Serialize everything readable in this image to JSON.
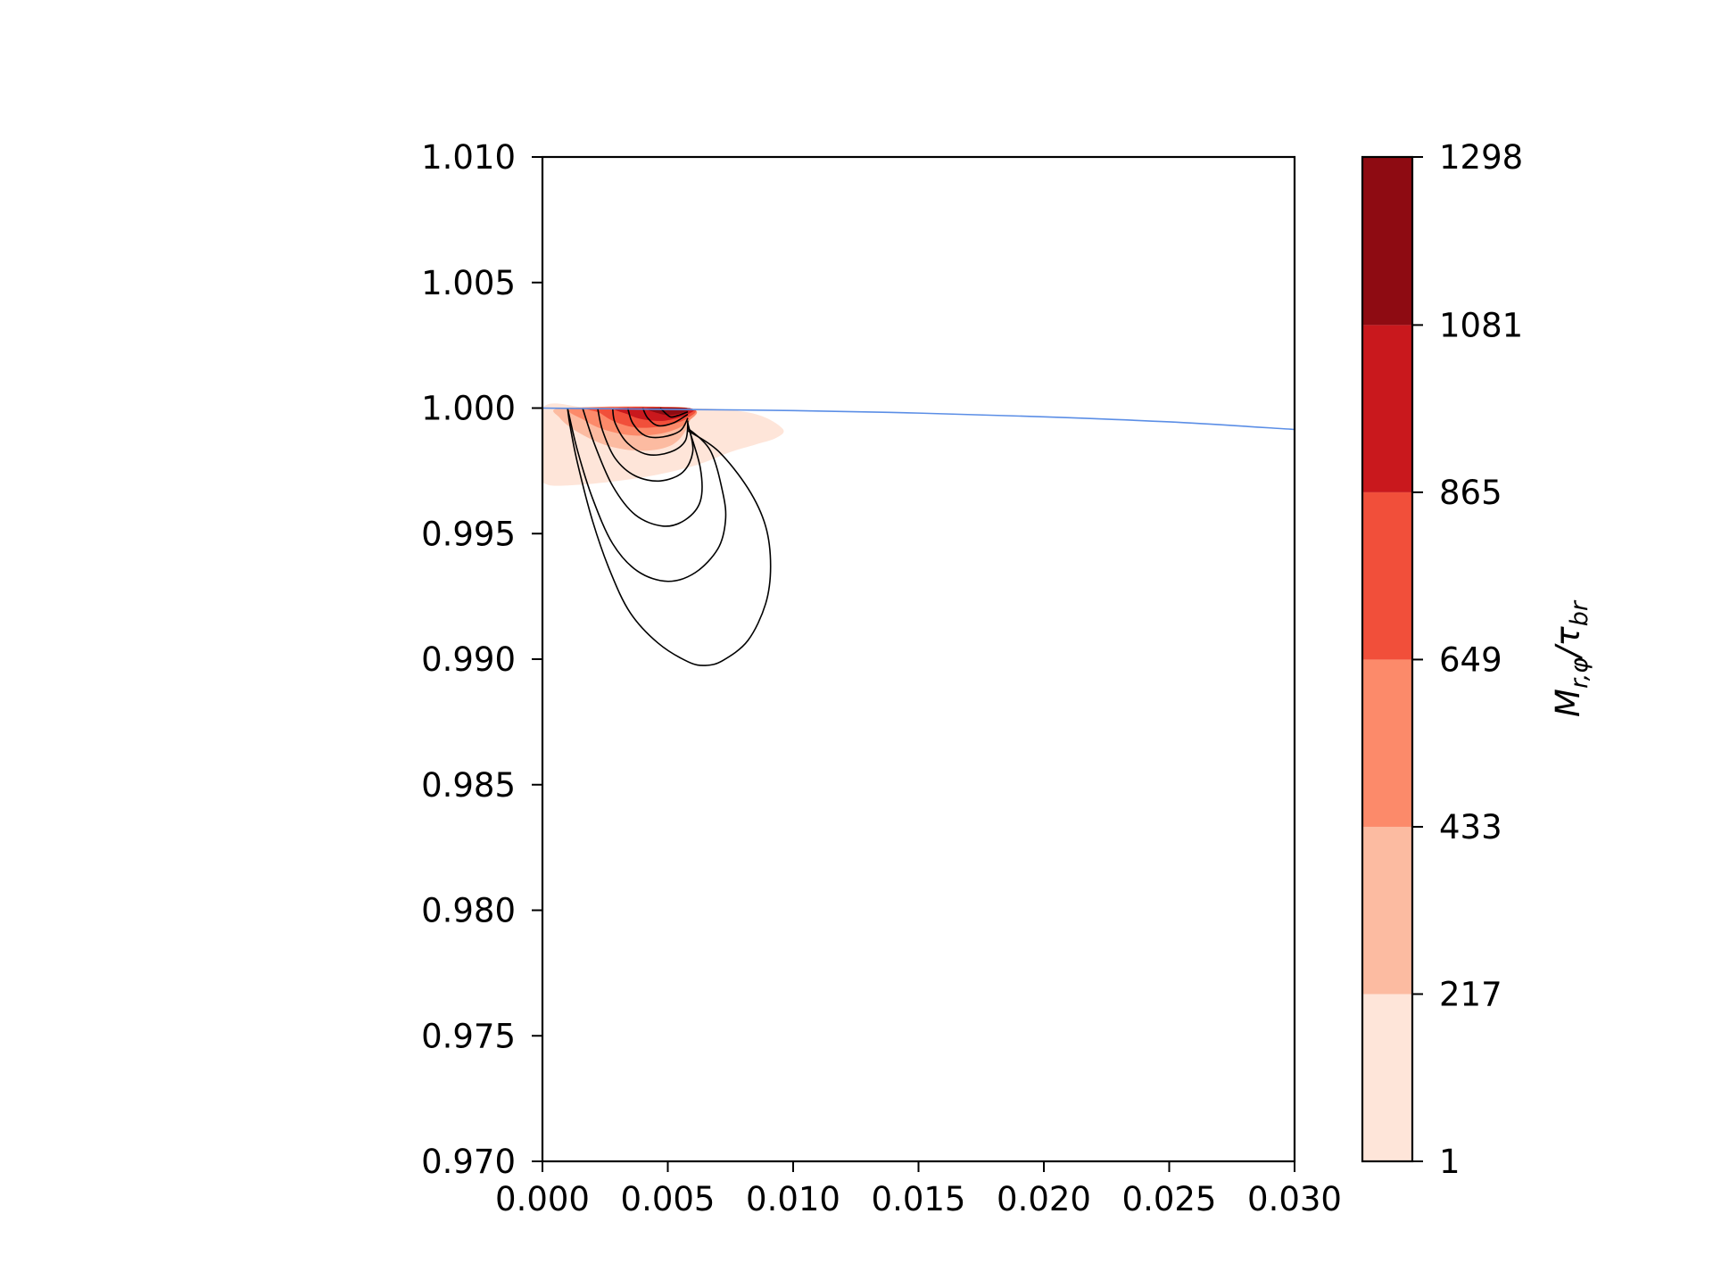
{
  "chart_data": {
    "type": "contour",
    "title": "",
    "xlabel": "",
    "ylabel": "",
    "xlim": [
      0.0,
      0.03
    ],
    "ylim": [
      0.97,
      1.01
    ],
    "x_ticks": [
      "0.000",
      "0.005",
      "0.010",
      "0.015",
      "0.020",
      "0.025",
      "0.030"
    ],
    "x_tick_values": [
      0.0,
      0.005,
      0.01,
      0.015,
      0.02,
      0.025,
      0.03
    ],
    "y_ticks": [
      "1.010",
      "1.005",
      "1.000",
      "0.995",
      "0.990",
      "0.985",
      "0.980",
      "0.975",
      "0.970"
    ],
    "y_tick_values": [
      1.01,
      1.005,
      1.0,
      0.995,
      0.99,
      0.985,
      0.98,
      0.975,
      0.97
    ],
    "grid": false,
    "surface_line": {
      "color": "#5b8ee6",
      "points": [
        [
          0.0,
          1.0
        ],
        [
          0.005,
          0.99995
        ],
        [
          0.01,
          0.9999
        ],
        [
          0.015,
          0.9998
        ],
        [
          0.02,
          0.99965
        ],
        [
          0.025,
          0.99945
        ],
        [
          0.03,
          0.99915
        ]
      ]
    },
    "filled_levels": {
      "boundaries": [
        1,
        217,
        433,
        649,
        865,
        1081,
        1298
      ],
      "colors": [
        "#fee5d9",
        "#fcbba1",
        "#fc8a6a",
        "#f14f3a",
        "#c9181d",
        "#8e0b12"
      ],
      "regions": [
        {
          "level_index": 0,
          "points": [
            [
              0.0,
              1.0
            ],
            [
              0.002,
              1.0
            ],
            [
              0.005,
              1.0
            ],
            [
              0.0072,
              0.99995
            ],
            [
              0.0087,
              0.9997
            ],
            [
              0.0096,
              0.99915
            ],
            [
              0.0093,
              0.9988
            ],
            [
              0.0085,
              0.99855
            ],
            [
              0.0075,
              0.99825
            ],
            [
              0.0062,
              0.99775
            ],
            [
              0.0046,
              0.99735
            ],
            [
              0.003,
              0.9971
            ],
            [
              0.0015,
              0.99695
            ],
            [
              0.0002,
              0.99695
            ],
            [
              0.0,
              0.9975
            ]
          ]
        },
        {
          "level_index": 1,
          "points": [
            [
              0.0007,
              1.0
            ],
            [
              0.004,
              1.0
            ],
            [
              0.0058,
              1.0
            ],
            [
              0.0058,
              0.9993
            ],
            [
              0.0052,
              0.99855
            ],
            [
              0.004,
              0.9983
            ],
            [
              0.0026,
              0.9985
            ],
            [
              0.0014,
              0.99905
            ],
            [
              0.0007,
              0.9996
            ]
          ]
        },
        {
          "level_index": 2,
          "points": [
            [
              0.0013,
              1.0
            ],
            [
              0.0058,
              1.0
            ],
            [
              0.0058,
              0.99945
            ],
            [
              0.005,
              0.99905
            ],
            [
              0.0038,
              0.9989
            ],
            [
              0.0026,
              0.9991
            ],
            [
              0.0017,
              0.9995
            ]
          ]
        },
        {
          "level_index": 3,
          "points": [
            [
              0.002,
              1.0
            ],
            [
              0.0058,
              1.0
            ],
            [
              0.0058,
              0.9996
            ],
            [
              0.0049,
              0.9993
            ],
            [
              0.0038,
              0.99922
            ],
            [
              0.0029,
              0.99945
            ],
            [
              0.0023,
              0.9998
            ]
          ]
        },
        {
          "level_index": 4,
          "points": [
            [
              0.003,
              1.0
            ],
            [
              0.0058,
              1.0
            ],
            [
              0.0058,
              0.99975
            ],
            [
              0.0049,
              0.9995
            ],
            [
              0.004,
              0.99955
            ],
            [
              0.0034,
              0.99975
            ]
          ]
        },
        {
          "level_index": 5,
          "points": [
            [
              0.0042,
              1.0
            ],
            [
              0.0058,
              1.0
            ],
            [
              0.0057,
              0.99985
            ],
            [
              0.0051,
              0.99972
            ],
            [
              0.0046,
              0.9998
            ]
          ]
        }
      ]
    },
    "contour_lines": [
      [
        [
          0.0058,
          0.99985
        ],
        [
          0.0054,
          0.9997
        ],
        [
          0.0051,
          0.99965
        ],
        [
          0.0048,
          0.9999
        ],
        [
          0.0047,
          1.0
        ]
      ],
      [
        [
          0.0058,
          0.99975
        ],
        [
          0.0052,
          0.9994
        ],
        [
          0.0046,
          0.9993
        ],
        [
          0.0042,
          0.9996
        ],
        [
          0.004,
          1.0
        ]
      ],
      [
        [
          0.0058,
          0.9996
        ],
        [
          0.0055,
          0.9991
        ],
        [
          0.0048,
          0.99885
        ],
        [
          0.0041,
          0.9989
        ],
        [
          0.0036,
          0.9994
        ],
        [
          0.0034,
          1.0
        ]
      ],
      [
        [
          0.0058,
          0.9995
        ],
        [
          0.0057,
          0.9987
        ],
        [
          0.0051,
          0.99825
        ],
        [
          0.0042,
          0.99815
        ],
        [
          0.0034,
          0.9986
        ],
        [
          0.0029,
          0.9994
        ],
        [
          0.0028,
          1.0
        ]
      ],
      [
        [
          0.0058,
          0.9994
        ],
        [
          0.006,
          0.9983
        ],
        [
          0.0056,
          0.99745
        ],
        [
          0.0047,
          0.9971
        ],
        [
          0.0037,
          0.9973
        ],
        [
          0.0029,
          0.998
        ],
        [
          0.0024,
          0.9991
        ],
        [
          0.0022,
          1.0
        ]
      ],
      [
        [
          0.0058,
          0.9993
        ],
        [
          0.0063,
          0.9976
        ],
        [
          0.0063,
          0.9963
        ],
        [
          0.0057,
          0.99555
        ],
        [
          0.0048,
          0.9953
        ],
        [
          0.0037,
          0.99575
        ],
        [
          0.0028,
          0.9969
        ],
        [
          0.0021,
          0.9985
        ],
        [
          0.0016,
          1.0
        ]
      ],
      [
        [
          0.0058,
          0.9992
        ],
        [
          0.0067,
          0.9983
        ],
        [
          0.0072,
          0.9966
        ],
        [
          0.0073,
          0.9955
        ],
        [
          0.007,
          0.9944
        ],
        [
          0.0061,
          0.99345
        ],
        [
          0.005,
          0.9931
        ],
        [
          0.0038,
          0.9935
        ],
        [
          0.0028,
          0.9946
        ],
        [
          0.002,
          0.9964
        ],
        [
          0.0014,
          0.9983
        ],
        [
          0.001,
          1.0
        ]
      ],
      [
        [
          0.0058,
          0.9991
        ],
        [
          0.007,
          0.9983
        ],
        [
          0.0082,
          0.9968
        ],
        [
          0.0089,
          0.9953
        ],
        [
          0.0091,
          0.9937
        ],
        [
          0.0089,
          0.9922
        ],
        [
          0.0082,
          0.99075
        ],
        [
          0.0072,
          0.98995
        ],
        [
          0.0065,
          0.98975
        ],
        [
          0.0058,
          0.9899
        ],
        [
          0.0046,
          0.99065
        ],
        [
          0.0035,
          0.99185
        ],
        [
          0.0027,
          0.9935
        ],
        [
          0.002,
          0.9955
        ],
        [
          0.0014,
          0.9978
        ],
        [
          0.0011,
          0.9993
        ],
        [
          0.001,
          1.0
        ]
      ]
    ],
    "colorbar": {
      "label": "M_{r,φ}/τ_{br}",
      "ticks": [
        "1",
        "217",
        "433",
        "649",
        "865",
        "1081",
        "1298"
      ],
      "tick_values": [
        1,
        217,
        433,
        649,
        865,
        1081,
        1298
      ]
    }
  }
}
